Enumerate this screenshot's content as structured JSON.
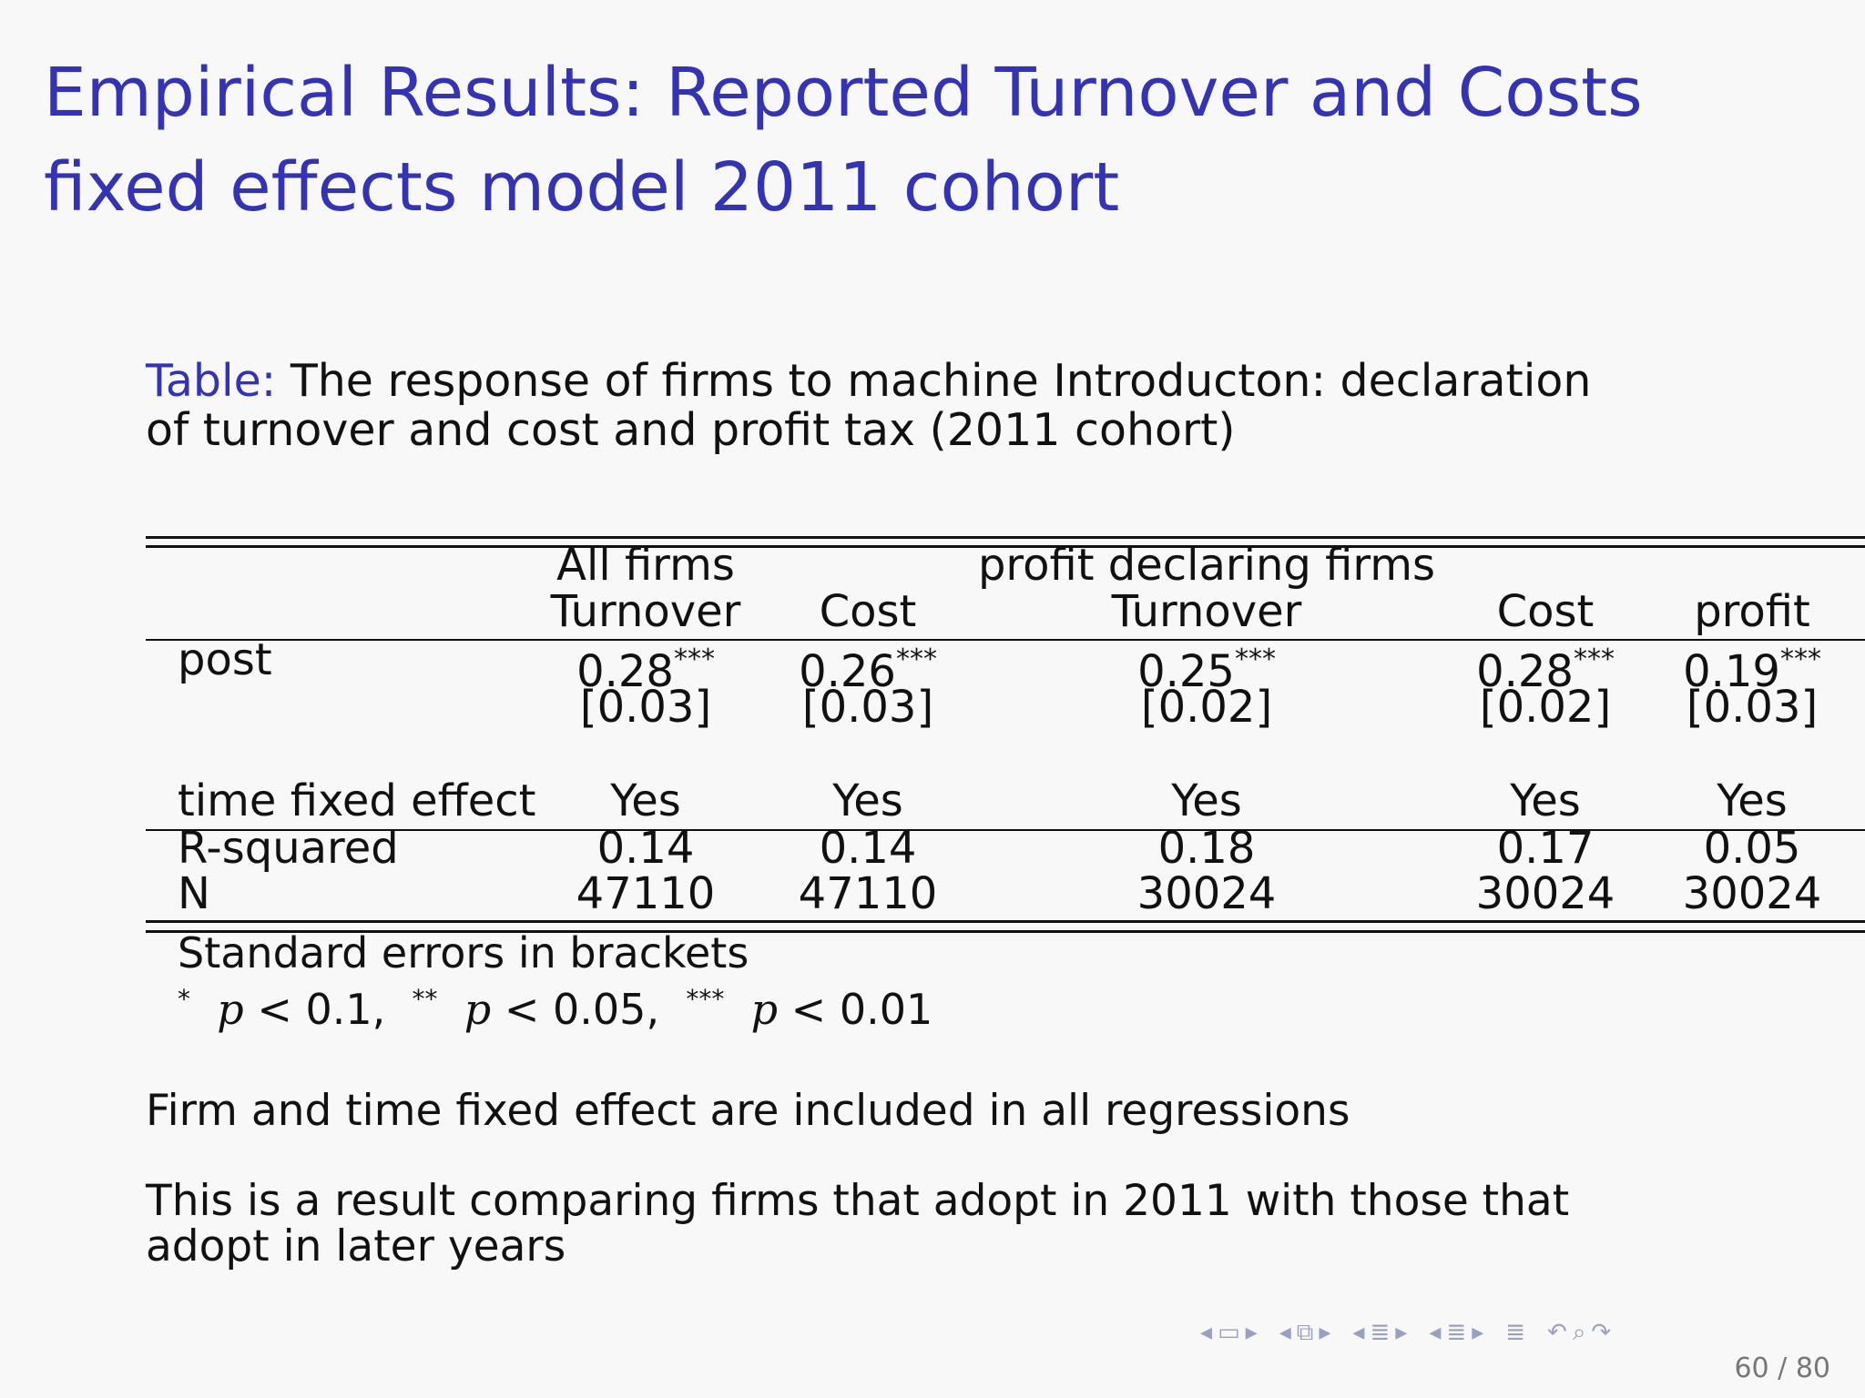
{
  "title": "Empirical Results: Reported Turnover and Costs fixed effects model 2011 cohort",
  "caption": {
    "label": "Table:",
    "text": "The response of firms to machine Introducton: declaration of turnover and cost and profit tax (2011 cohort)"
  },
  "table": {
    "group_headers": [
      "All firms",
      "profit declaring firms"
    ],
    "columns": [
      "Turnover",
      "Cost",
      "Turnover",
      "Cost",
      "profit"
    ],
    "rows": {
      "post": {
        "label": "post",
        "coefs": [
          "0.28",
          "0.26",
          "0.25",
          "0.28",
          "0.19"
        ],
        "stars": [
          "***",
          "***",
          "***",
          "***",
          "***"
        ],
        "se": [
          "[0.03]",
          "[0.03]",
          "[0.02]",
          "[0.02]",
          "[0.03]"
        ]
      },
      "time_fe": {
        "label": "time fixed effect",
        "values": [
          "Yes",
          "Yes",
          "Yes",
          "Yes",
          "Yes"
        ]
      },
      "r2": {
        "label": "R-squared",
        "values": [
          "0.14",
          "0.14",
          "0.18",
          "0.17",
          "0.05"
        ]
      },
      "n": {
        "label": "N",
        "values": [
          "47110",
          "47110",
          "30024",
          "30024",
          "30024"
        ]
      }
    },
    "notes": {
      "se_note": "Standard errors in brackets",
      "sig": [
        {
          "stars": "*",
          "p": "p",
          "rel": "< 0.1,"
        },
        {
          "stars": "**",
          "p": "p",
          "rel": "< 0.05,"
        },
        {
          "stars": "***",
          "p": "p",
          "rel": "< 0.01"
        }
      ]
    }
  },
  "para1": "Firm and time fixed effect are included in all regressions",
  "para2": "This is a result comparing firms that adopt in 2011 with those that adopt in later years",
  "navigation": {
    "icons": [
      "nav-frame-prev-icon",
      "nav-frame-icon",
      "nav-frame-next-icon",
      "nav-subsection-prev-icon",
      "nav-subsection-icon",
      "nav-subsection-next-icon",
      "nav-section-prev-icon",
      "nav-section-icon",
      "nav-section-next-icon",
      "nav-doc-prev-icon",
      "nav-doc-icon",
      "nav-doc-next-icon",
      "nav-outline-icon",
      "nav-search-icon"
    ],
    "page": "60 / 80"
  }
}
